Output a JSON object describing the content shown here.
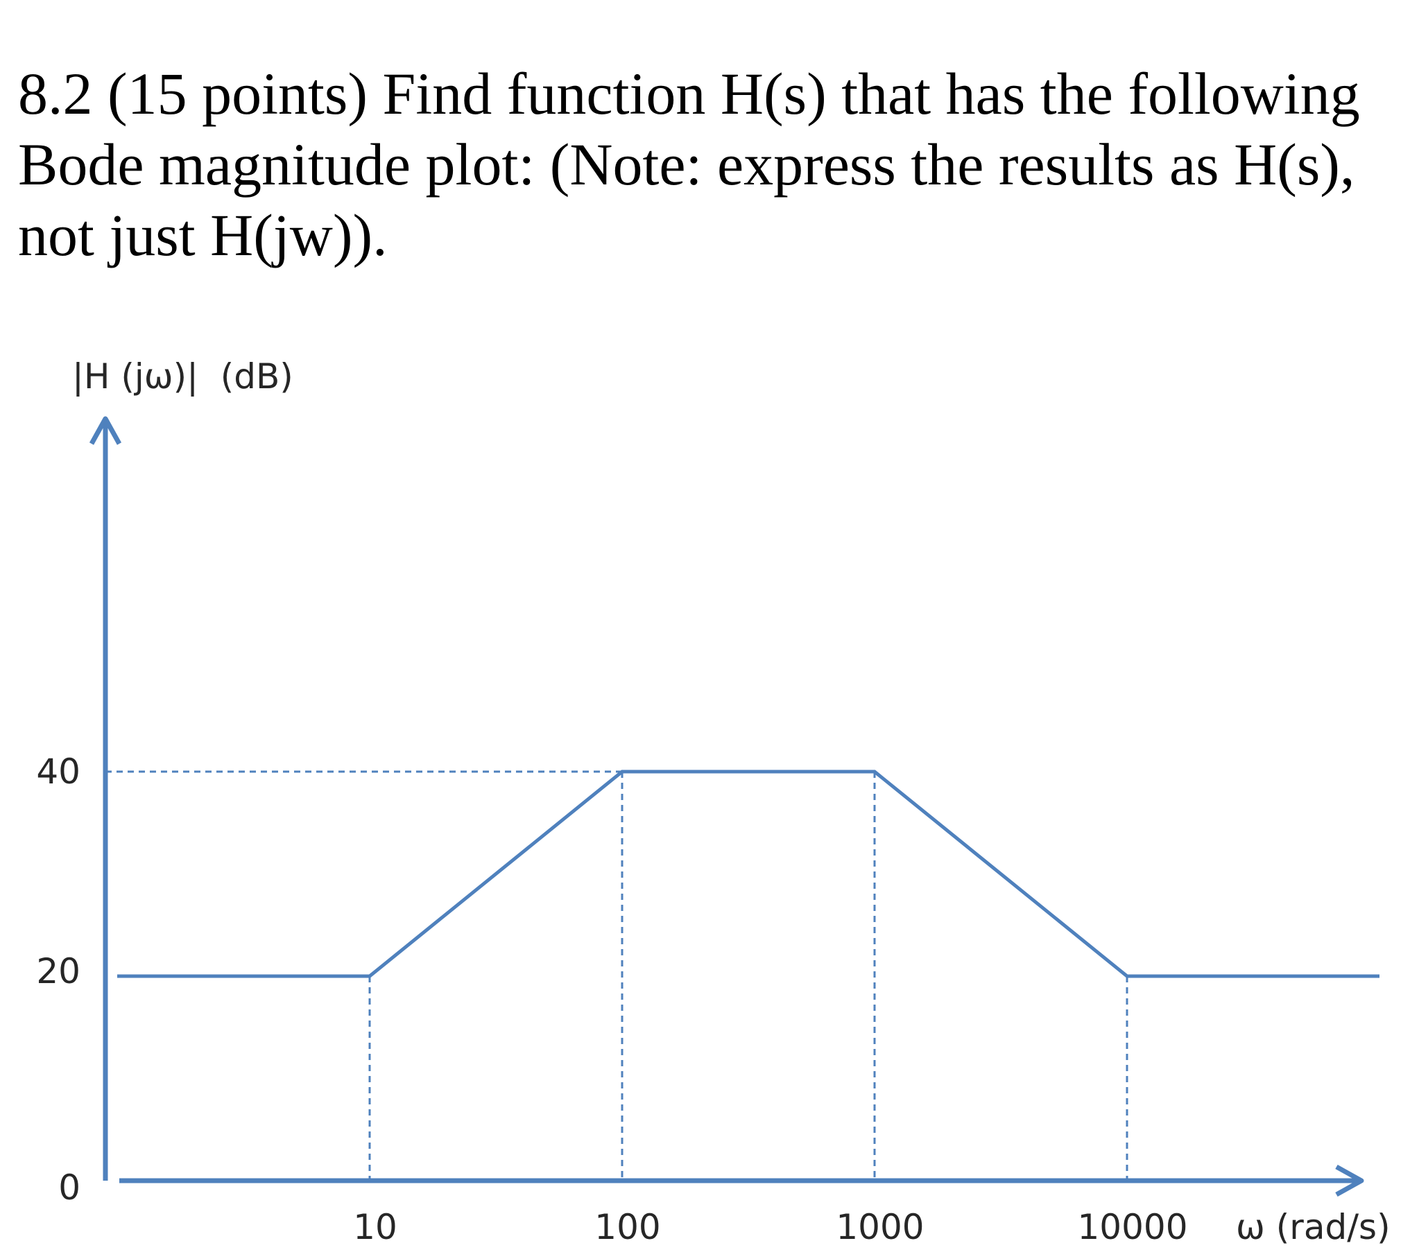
{
  "question": {
    "lines": [
      "8.2 (15 points) Find function H(s) that has the following",
      "Bode magnitude plot: (Note: express the results as H(s),",
      "not just H(jw))."
    ]
  },
  "chart_data": {
    "type": "line",
    "title": "",
    "xlabel": "ω (rad/s)",
    "ylabel": "|H (jω)|  (dB)",
    "x_scale": "log",
    "x_ticks": [
      10,
      100,
      1000,
      10000
    ],
    "x_tick_labels": [
      "10",
      "100",
      "1000",
      "10000"
    ],
    "y_ticks": [
      0,
      20,
      40
    ],
    "y_tick_labels": [
      "0",
      "20",
      "40"
    ],
    "series": [
      {
        "x": [
          1,
          10,
          100,
          1000,
          10000,
          100000
        ],
        "y": [
          20,
          20,
          40,
          40,
          20,
          20
        ]
      }
    ],
    "reference_lines": {
      "horizontal_dB": [
        40
      ],
      "vertical_omega": [
        10,
        100,
        1000,
        10000
      ]
    },
    "grid": false,
    "legend": "none",
    "colors": {
      "line": "#4f81bd",
      "axis": "#4f81bd",
      "guide": "#4f81bd",
      "text": "#262626"
    }
  }
}
